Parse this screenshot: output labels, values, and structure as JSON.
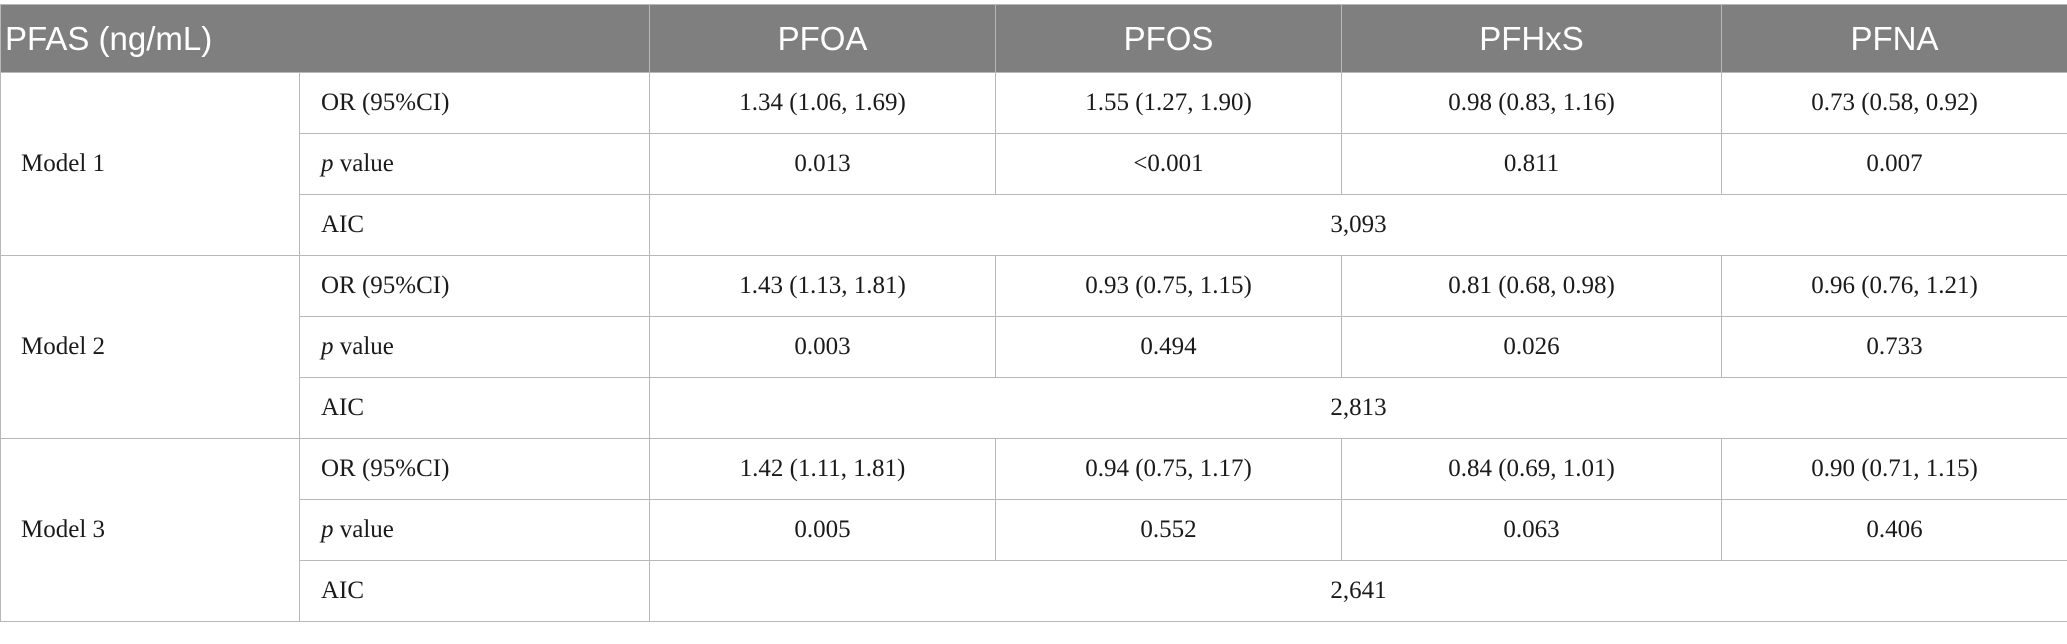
{
  "table": {
    "header": {
      "label": "PFAS (ng/mL)",
      "columns": [
        "PFOA",
        "PFOS",
        "PFHxS",
        "PFNA"
      ]
    },
    "models": [
      {
        "name": "Model 1",
        "or_label": "OR (95%CI)",
        "or_values": [
          "1.34 (1.06, 1.69)",
          "1.55 (1.27, 1.90)",
          "0.98 (0.83, 1.16)",
          "0.73 (0.58, 0.92)"
        ],
        "p_label_italic": "p",
        "p_label_rest": " value",
        "p_values": [
          "0.013",
          "<0.001",
          "0.811",
          "0.007"
        ],
        "aic_label": "AIC",
        "aic_value": "3,093"
      },
      {
        "name": "Model 2",
        "or_label": "OR (95%CI)",
        "or_values": [
          "1.43 (1.13, 1.81)",
          "0.93 (0.75, 1.15)",
          "0.81 (0.68, 0.98)",
          "0.96 (0.76, 1.21)"
        ],
        "p_label_italic": "p",
        "p_label_rest": " value",
        "p_values": [
          "0.003",
          "0.494",
          "0.026",
          "0.733"
        ],
        "aic_label": "AIC",
        "aic_value": "2,813"
      },
      {
        "name": "Model 3",
        "or_label": "OR (95%CI)",
        "or_values": [
          "1.42 (1.11, 1.81)",
          "0.94 (0.75, 1.17)",
          "0.84 (0.69, 1.01)",
          "0.90 (0.71, 1.15)"
        ],
        "p_label_italic": "p",
        "p_label_rest": " value",
        "p_values": [
          "0.005",
          "0.552",
          "0.063",
          "0.406"
        ],
        "aic_label": "AIC",
        "aic_value": "2,641"
      }
    ],
    "colors": {
      "header_background": "#7f7f7f",
      "header_text": "#ffffff",
      "grid_lines": "#b8b8b8"
    }
  }
}
